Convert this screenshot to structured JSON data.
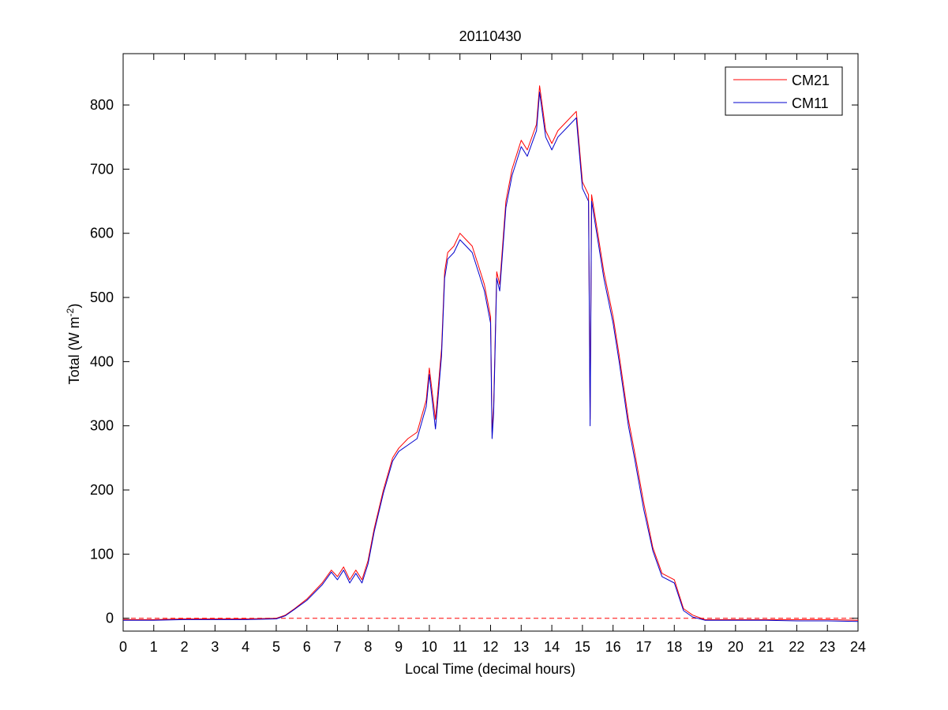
{
  "chart_data": {
    "type": "line",
    "title": "20110430",
    "xlabel": "Local Time (decimal hours)",
    "ylabel_main": "Total (W m",
    "ylabel_sup": "-2",
    "ylabel_close": ")",
    "xlim": [
      0,
      24
    ],
    "ylim": [
      -20,
      880
    ],
    "xticks": [
      0,
      1,
      2,
      3,
      4,
      5,
      6,
      7,
      8,
      9,
      10,
      11,
      12,
      13,
      14,
      15,
      16,
      17,
      18,
      19,
      20,
      21,
      22,
      23,
      24
    ],
    "yticks": [
      0,
      100,
      200,
      300,
      400,
      500,
      600,
      700,
      800
    ],
    "grid": false,
    "legend_position": "top-right",
    "zero_line": {
      "y": 0,
      "style": "dashed",
      "color": "#ff0000"
    },
    "series": [
      {
        "name": "CM21",
        "color": "#ff0000",
        "x": [
          0,
          1,
          2,
          3,
          4,
          5,
          5.3,
          5.6,
          6,
          6.5,
          6.8,
          7,
          7.2,
          7.4,
          7.6,
          7.8,
          8,
          8.2,
          8.5,
          8.8,
          9,
          9.3,
          9.6,
          9.9,
          10,
          10.2,
          10.4,
          10.5,
          10.6,
          10.8,
          11,
          11.2,
          11.4,
          11.6,
          11.8,
          12,
          12.05,
          12.1,
          12.2,
          12.3,
          12.5,
          12.7,
          13,
          13.2,
          13.5,
          13.6,
          13.8,
          14,
          14.2,
          14.5,
          14.8,
          15,
          15.2,
          15.25,
          15.3,
          15.5,
          15.7,
          16,
          16.2,
          16.5,
          16.7,
          17,
          17.3,
          17.6,
          18,
          18.3,
          18.6,
          19,
          19.5,
          20,
          21,
          22,
          23,
          24
        ],
        "y": [
          -2,
          -2,
          -1,
          -1,
          -1,
          0,
          5,
          15,
          30,
          55,
          75,
          65,
          80,
          60,
          75,
          60,
          90,
          140,
          200,
          250,
          265,
          280,
          290,
          340,
          390,
          310,
          420,
          540,
          570,
          580,
          600,
          590,
          580,
          550,
          520,
          470,
          290,
          330,
          540,
          520,
          650,
          700,
          745,
          730,
          770,
          830,
          760,
          740,
          760,
          775,
          790,
          680,
          660,
          310,
          660,
          600,
          540,
          470,
          410,
          310,
          260,
          180,
          110,
          70,
          60,
          15,
          5,
          -2,
          -2,
          -2,
          -2,
          -2,
          -2,
          -3
        ]
      },
      {
        "name": "CM11",
        "color": "#0000cc",
        "x": [
          0,
          1,
          2,
          3,
          4,
          5,
          5.3,
          5.6,
          6,
          6.5,
          6.8,
          7,
          7.2,
          7.4,
          7.6,
          7.8,
          8,
          8.2,
          8.5,
          8.8,
          9,
          9.3,
          9.6,
          9.9,
          10,
          10.2,
          10.4,
          10.5,
          10.6,
          10.8,
          11,
          11.2,
          11.4,
          11.6,
          11.8,
          12,
          12.05,
          12.1,
          12.2,
          12.3,
          12.5,
          12.7,
          13,
          13.2,
          13.5,
          13.6,
          13.8,
          14,
          14.2,
          14.5,
          14.8,
          15,
          15.2,
          15.25,
          15.3,
          15.5,
          15.7,
          16,
          16.2,
          16.5,
          16.7,
          17,
          17.3,
          17.6,
          18,
          18.3,
          18.6,
          19,
          19.5,
          20,
          21,
          22,
          23,
          24
        ],
        "y": [
          -3,
          -3,
          -2,
          -2,
          -2,
          -1,
          4,
          14,
          28,
          52,
          72,
          60,
          75,
          55,
          70,
          55,
          85,
          135,
          195,
          245,
          260,
          270,
          280,
          330,
          380,
          295,
          410,
          530,
          560,
          570,
          590,
          580,
          570,
          540,
          510,
          460,
          280,
          320,
          530,
          510,
          640,
          690,
          735,
          720,
          760,
          820,
          750,
          730,
          750,
          765,
          780,
          670,
          650,
          300,
          650,
          590,
          530,
          460,
          400,
          300,
          250,
          170,
          105,
          65,
          55,
          12,
          2,
          -3,
          -3,
          -3,
          -3,
          -4,
          -4,
          -5
        ]
      }
    ]
  }
}
